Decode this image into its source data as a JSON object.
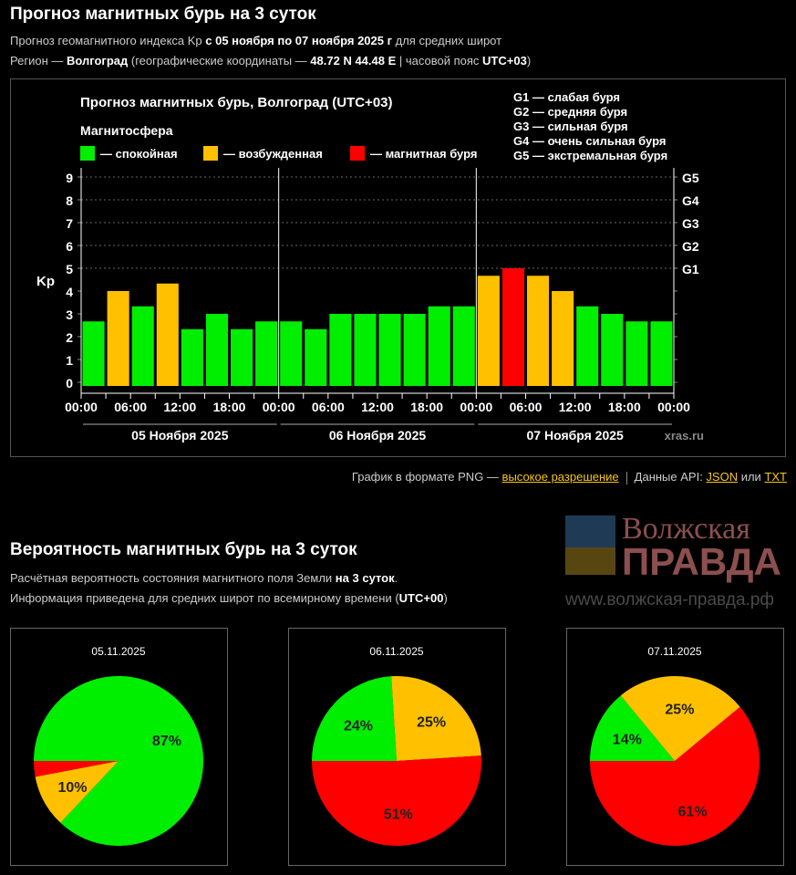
{
  "header": {
    "title": "Прогноз магнитных бурь на 3 суток",
    "line1": {
      "a": "Прогноз геомагнитного индекса Kp ",
      "b": "с 05 ноября по 07 ноября 2025 г",
      "c": " для средних широт"
    },
    "line2": {
      "a": "Регион — ",
      "b": "Волгоград",
      "c": " (географические координаты — ",
      "d": "48.72 N 44.48 E",
      "e": " | часовой пояс ",
      "f": "UTC+03",
      "g": ")"
    }
  },
  "chart_data": {
    "type": "bar",
    "title": "Прогноз магнитных бурь, Волгоград (UTC+03)",
    "ylabel": "Kp",
    "ylim": [
      0,
      9
    ],
    "yticks": [
      "0",
      "1",
      "2",
      "3",
      "4",
      "5",
      "6",
      "7",
      "8",
      "9"
    ],
    "right_ticks": [
      {
        "kp": 5,
        "label": "G1"
      },
      {
        "kp": 6,
        "label": "G2"
      },
      {
        "kp": 7,
        "label": "G3"
      },
      {
        "kp": 8,
        "label": "G4"
      },
      {
        "kp": 9,
        "label": "G5"
      }
    ],
    "xticks": [
      "00:00",
      "06:00",
      "12:00",
      "18:00",
      "00:00",
      "06:00",
      "12:00",
      "18:00",
      "00:00",
      "06:00",
      "12:00",
      "18:00",
      "00:00"
    ],
    "days": [
      "05 Ноября 2025",
      "06 Ноября 2025",
      "07 Ноября 2025"
    ],
    "values": [
      2.67,
      4,
      3.33,
      4.33,
      2.33,
      3,
      2.33,
      2.67,
      2.67,
      2.33,
      3,
      3,
      3,
      3,
      3.33,
      3.33,
      4.67,
      5,
      4.67,
      4,
      3.33,
      3,
      2.67,
      2.67
    ],
    "legend_title": "Магнитосфера",
    "legend": [
      {
        "label": "— спокойная",
        "color": "#00ee00"
      },
      {
        "label": "— возбужденная",
        "color": "#ffc000"
      },
      {
        "label": "— магнитная буря",
        "color": "#ff0000"
      }
    ],
    "scale": [
      "G1 — слабая буря",
      "G2 — средняя буря",
      "G3 — сильная буря",
      "G4 — очень сильная буря",
      "G5 — экстремальная буря"
    ],
    "credit": "xras.ru"
  },
  "links": {
    "png_text": "График в формате PNG — ",
    "png_link": "высокое разрешение",
    "api_text": "Данные API: ",
    "json": "JSON",
    "or": " или ",
    "txt": "TXT"
  },
  "prob": {
    "title": "Вероятность магнитных бурь на 3 суток",
    "line1": {
      "a": "Расчётная вероятность состояния магнитного поля Земли ",
      "b": "на 3 суток",
      "c": "."
    },
    "line2": {
      "a": "Информация приведена для средних широт по всемирному времени (",
      "b": "UTC+00",
      "c": ")"
    },
    "pies": [
      {
        "date": "05.11.2025",
        "values": [
          87,
          10,
          3
        ]
      },
      {
        "date": "06.11.2025",
        "values": [
          24,
          25,
          51
        ]
      },
      {
        "date": "07.11.2025",
        "values": [
          14,
          25,
          61
        ]
      }
    ]
  },
  "watermark": {
    "name1": "Волжская",
    "name2": "ПРАВДА",
    "url": "www.волжская-правда.рф"
  }
}
